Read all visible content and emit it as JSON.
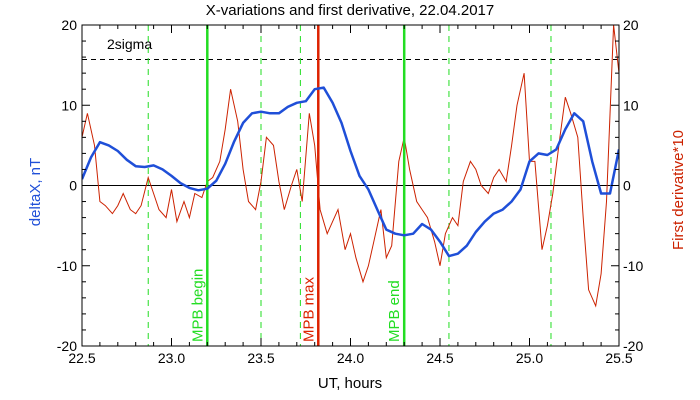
{
  "colors": {
    "deltaX": "#1f4fd8",
    "derivative": "#cc2200",
    "mpb_boundary": "#22dd22",
    "mpb_max": "#dd2200",
    "axis": "#000000",
    "sigma": "#000000"
  },
  "chart_data": {
    "type": "line",
    "title": "X-variations and first derivative, 22.04.2017",
    "xlabel": "UT, hours",
    "ylabel_left": "deltaX, nT",
    "ylabel_right": "First derivative*10",
    "xlim": [
      22.5,
      25.5
    ],
    "ylim": [
      -20,
      20
    ],
    "x_ticks": [
      "22.5",
      "23.0",
      "23.5",
      "24.0",
      "24.5",
      "25.0",
      "25.5"
    ],
    "y_ticks_left": [
      "20",
      "10",
      "0",
      "-10",
      "-20"
    ],
    "y_ticks_right": [
      "20",
      "10",
      "0",
      "-10",
      "-20"
    ],
    "grid": false,
    "annotations": {
      "sigma_label": "2sigma",
      "sigma_level": 15.7,
      "mpb_begin_label": "MPB begin",
      "mpb_begin_x": 23.2,
      "mpb_max_label": "MPB max",
      "mpb_max_x": 23.82,
      "mpb_end_label": "MPB end",
      "mpb_end_x": 24.3,
      "dashed_green_x": [
        22.87,
        23.5,
        23.72,
        24.55,
        25.12
      ]
    },
    "series": [
      {
        "key": "deltaX",
        "axis": "left",
        "x": [
          22.5,
          22.55,
          22.6,
          22.65,
          22.7,
          22.75,
          22.8,
          22.85,
          22.9,
          22.95,
          23.0,
          23.05,
          23.1,
          23.15,
          23.2,
          23.25,
          23.3,
          23.35,
          23.4,
          23.45,
          23.5,
          23.55,
          23.6,
          23.65,
          23.7,
          23.75,
          23.8,
          23.85,
          23.9,
          23.95,
          24.0,
          24.05,
          24.1,
          24.15,
          24.2,
          24.25,
          24.3,
          24.35,
          24.4,
          24.45,
          24.5,
          24.55,
          24.6,
          24.65,
          24.7,
          24.75,
          24.8,
          24.85,
          24.9,
          24.95,
          25.0,
          25.05,
          25.1,
          25.15,
          25.2,
          25.25,
          25.3,
          25.35,
          25.4,
          25.45,
          25.5
        ],
        "values": [
          0.8,
          3.5,
          5.4,
          5.0,
          4.3,
          3.2,
          2.4,
          2.3,
          2.5,
          2.0,
          1.2,
          0.3,
          -0.3,
          -0.6,
          -0.4,
          0.6,
          2.7,
          5.5,
          7.8,
          9.0,
          9.2,
          9.0,
          9.0,
          9.8,
          10.3,
          10.5,
          12.0,
          12.2,
          10.3,
          7.8,
          4.3,
          1.2,
          -0.5,
          -3.0,
          -5.5,
          -6.0,
          -6.2,
          -6.0,
          -4.8,
          -5.5,
          -7.0,
          -8.8,
          -8.5,
          -7.5,
          -5.8,
          -4.5,
          -3.5,
          -3.0,
          -2.0,
          -0.5,
          3.0,
          4.0,
          3.8,
          4.5,
          7.0,
          9.0,
          8.0,
          3.0,
          -1.0,
          -1.0,
          4.5
        ]
      },
      {
        "key": "derivative",
        "axis": "right",
        "x": [
          22.5,
          22.53,
          22.57,
          22.6,
          22.63,
          22.67,
          22.7,
          22.73,
          22.77,
          22.8,
          22.83,
          22.87,
          22.9,
          22.93,
          22.97,
          23.0,
          23.03,
          23.07,
          23.1,
          23.13,
          23.17,
          23.2,
          23.23,
          23.27,
          23.3,
          23.33,
          23.37,
          23.4,
          23.43,
          23.47,
          23.5,
          23.53,
          23.57,
          23.6,
          23.63,
          23.67,
          23.7,
          23.73,
          23.77,
          23.8,
          23.83,
          23.87,
          23.9,
          23.93,
          23.97,
          24.0,
          24.03,
          24.07,
          24.1,
          24.13,
          24.17,
          24.2,
          24.23,
          24.27,
          24.3,
          24.33,
          24.37,
          24.4,
          24.43,
          24.47,
          24.5,
          24.53,
          24.57,
          24.6,
          24.63,
          24.67,
          24.7,
          24.73,
          24.77,
          24.8,
          24.83,
          24.87,
          24.9,
          24.93,
          24.97,
          25.0,
          25.03,
          25.07,
          25.1,
          25.13,
          25.17,
          25.2,
          25.23,
          25.27,
          25.3,
          25.33,
          25.37,
          25.4,
          25.43,
          25.47,
          25.5
        ],
        "values": [
          6.0,
          9.0,
          5.0,
          -2.0,
          -2.5,
          -3.5,
          -2.5,
          -1.0,
          -3.0,
          -3.5,
          -2.5,
          1.0,
          -1.0,
          -3.0,
          -4.0,
          -0.5,
          -4.5,
          -2.0,
          -4.0,
          -1.0,
          -1.5,
          0.5,
          1.0,
          3.0,
          7.0,
          12.0,
          8.0,
          2.0,
          -2.0,
          -3.0,
          0.5,
          6.0,
          5.0,
          0.5,
          -3.0,
          0.0,
          2.0,
          -2.0,
          9.0,
          5.0,
          -3.0,
          -6.0,
          -4.5,
          -3.0,
          -8.0,
          -6.0,
          -9.0,
          -12.0,
          -10.0,
          -7.0,
          -3.0,
          -9.0,
          -7.5,
          3.0,
          6.0,
          2.0,
          -2.0,
          -3.0,
          -4.0,
          -7.0,
          -10.0,
          -6.0,
          -4.0,
          -5.0,
          0.5,
          3.0,
          2.0,
          0.0,
          -1.0,
          1.0,
          2.0,
          0.5,
          5.0,
          10.0,
          14.0,
          3.0,
          3.0,
          -8.0,
          -5.0,
          -1.0,
          6.0,
          11.0,
          9.0,
          6.0,
          -4.0,
          -13.0,
          -15.0,
          -11.0,
          -2.0,
          20.0,
          14.0
        ]
      }
    ]
  }
}
